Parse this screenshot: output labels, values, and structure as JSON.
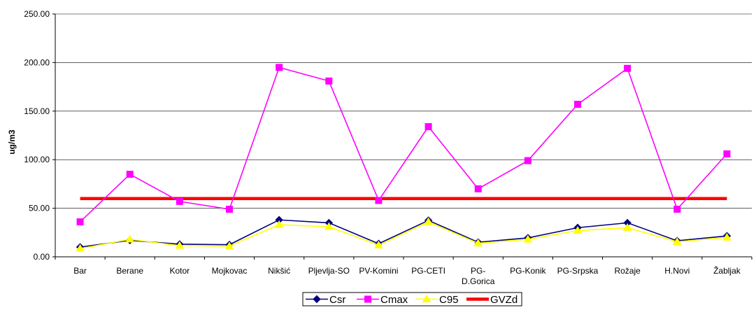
{
  "chart_data": {
    "type": "line",
    "title": "",
    "xlabel": "",
    "ylabel": "ug/m3",
    "ylim": [
      0,
      250
    ],
    "yticks": [
      "0.00",
      "50.00",
      "100.00",
      "150.00",
      "200.00",
      "250.00"
    ],
    "grid": "horizontal",
    "legend_position": "bottom",
    "categories": [
      "Bar",
      "Berane",
      "Kotor",
      "Mojkovac",
      "Nikšić",
      "Pljevlja-SO",
      "PV-Komini",
      "PG-CETI",
      "PG-D.Gorica",
      "PG-Konik",
      "PG-Srpska",
      "Rožaje",
      "H.Novi",
      "Žabljak"
    ],
    "category_lines": [
      [
        "Bar"
      ],
      [
        "Berane"
      ],
      [
        "Kotor"
      ],
      [
        "Mojkovac"
      ],
      [
        "Nikšić"
      ],
      [
        "Pljevlja-SO"
      ],
      [
        "PV-Komini"
      ],
      [
        "PG-CETI"
      ],
      [
        "PG-",
        "D.Gorica"
      ],
      [
        "PG-Konik"
      ],
      [
        "PG-Srpska"
      ],
      [
        "Rožaje"
      ],
      [
        "H.Novi"
      ],
      [
        "Žabljak"
      ]
    ],
    "series": [
      {
        "name": "Csr",
        "color": "#000080",
        "marker": "diamond",
        "values": [
          10,
          17,
          13,
          12.5,
          38,
          35,
          13.5,
          37.5,
          15,
          19.5,
          30,
          35,
          16.5,
          21.5
        ]
      },
      {
        "name": "Cmax",
        "color": "#FF00FF",
        "marker": "square",
        "values": [
          36,
          85,
          57,
          49,
          195,
          181,
          58,
          134,
          70,
          99,
          157,
          194,
          49,
          106
        ]
      },
      {
        "name": "C95",
        "color": "#FFFF00",
        "marker": "triangle",
        "values": [
          8.5,
          18,
          11.5,
          11,
          33,
          31,
          12,
          36,
          14,
          18,
          27,
          30,
          15.5,
          20
        ]
      },
      {
        "name": "GVZd",
        "color": "#FF0000",
        "marker": "none",
        "values": [
          60,
          60,
          60,
          60,
          60,
          60,
          60,
          60,
          60,
          60,
          60,
          60,
          60,
          60
        ]
      }
    ]
  }
}
